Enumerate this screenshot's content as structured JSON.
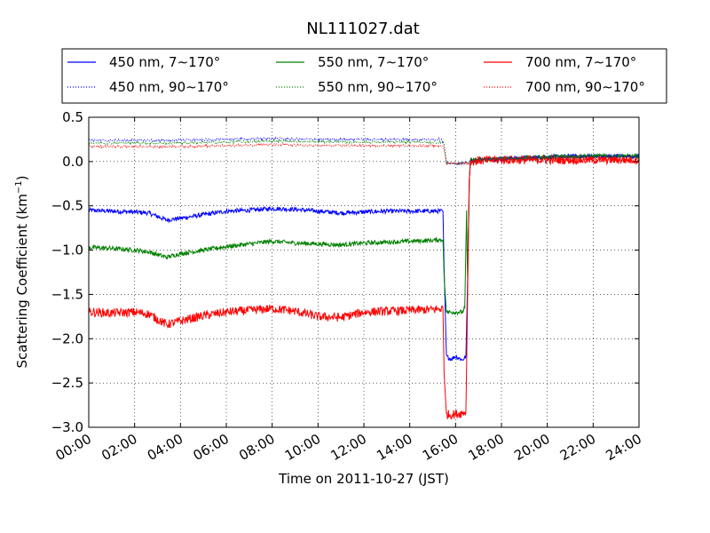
{
  "chart_data": {
    "type": "line",
    "title": "NL111027.dat",
    "xlabel": "Time on 2011-10-27 (JST)",
    "ylabel": {
      "prefix": "Scattering Coefficient (km",
      "sup": "−1",
      "suffix": ")"
    },
    "xlim": [
      0,
      24
    ],
    "ylim": [
      -3.0,
      0.5
    ],
    "x_unit": "hours",
    "x_ticks": [
      0,
      2,
      4,
      6,
      8,
      10,
      12,
      14,
      16,
      18,
      20,
      22,
      24
    ],
    "x_tick_labels": [
      "00:00",
      "02:00",
      "04:00",
      "06:00",
      "08:00",
      "10:00",
      "12:00",
      "14:00",
      "16:00",
      "18:00",
      "20:00",
      "22:00",
      "24:00"
    ],
    "y_ticks": [
      0.5,
      0.0,
      -0.5,
      -1.0,
      -1.5,
      -2.0,
      -2.5,
      -3.0
    ],
    "y_tick_labels": [
      "0.5",
      "0.0",
      "−0.5",
      "−1.0",
      "−1.5",
      "−2.0",
      "−2.5",
      "−3.0"
    ],
    "grid": true,
    "legend_placement": "top",
    "series": [
      {
        "name": "450 nm, 7∼170°",
        "color": "#0000ff",
        "style": "solid",
        "noise": 0.025,
        "points": [
          [
            0,
            -0.55
          ],
          [
            1,
            -0.56
          ],
          [
            2,
            -0.57
          ],
          [
            2.6,
            -0.58
          ],
          [
            3,
            -0.62
          ],
          [
            3.4,
            -0.66
          ],
          [
            4,
            -0.64
          ],
          [
            5,
            -0.6
          ],
          [
            6,
            -0.56
          ],
          [
            7,
            -0.55
          ],
          [
            8,
            -0.53
          ],
          [
            9,
            -0.54
          ],
          [
            10,
            -0.56
          ],
          [
            11,
            -0.58
          ],
          [
            12,
            -0.57
          ],
          [
            13,
            -0.56
          ],
          [
            14,
            -0.56
          ],
          [
            15,
            -0.56
          ],
          [
            15.45,
            -0.56
          ],
          [
            15.5,
            -1.2
          ],
          [
            15.6,
            -2.2
          ],
          [
            15.8,
            -2.23
          ],
          [
            16.0,
            -2.2
          ],
          [
            16.3,
            -2.24
          ],
          [
            16.45,
            -2.2
          ],
          [
            16.5,
            -1.65
          ],
          [
            16.55,
            -1.0
          ],
          [
            16.6,
            -0.2
          ],
          [
            16.65,
            0.01
          ],
          [
            17,
            0.02
          ],
          [
            18,
            0.03
          ],
          [
            19,
            0.04
          ],
          [
            20,
            0.05
          ],
          [
            21,
            0.06
          ],
          [
            22,
            0.06
          ],
          [
            23,
            0.06
          ],
          [
            24,
            0.06
          ]
        ]
      },
      {
        "name": "550 nm, 7∼170°",
        "color": "#008000",
        "style": "solid",
        "noise": 0.025,
        "points": [
          [
            0,
            -0.97
          ],
          [
            1,
            -0.98
          ],
          [
            2,
            -1.0
          ],
          [
            2.6,
            -1.02
          ],
          [
            3,
            -1.05
          ],
          [
            3.4,
            -1.08
          ],
          [
            4,
            -1.04
          ],
          [
            5,
            -1.0
          ],
          [
            6,
            -0.96
          ],
          [
            7,
            -0.93
          ],
          [
            8,
            -0.9
          ],
          [
            9,
            -0.92
          ],
          [
            10,
            -0.93
          ],
          [
            11,
            -0.94
          ],
          [
            12,
            -0.92
          ],
          [
            13,
            -0.91
          ],
          [
            14,
            -0.9
          ],
          [
            15,
            -0.89
          ],
          [
            15.45,
            -0.88
          ],
          [
            15.5,
            -1.3
          ],
          [
            15.6,
            -1.7
          ],
          [
            15.8,
            -1.7
          ],
          [
            16.0,
            -1.7
          ],
          [
            16.3,
            -1.7
          ],
          [
            16.4,
            -1.65
          ],
          [
            16.48,
            -0.55
          ],
          [
            16.52,
            -1.3
          ],
          [
            16.6,
            -0.2
          ],
          [
            16.65,
            0.01
          ],
          [
            17,
            0.02
          ],
          [
            18,
            0.03
          ],
          [
            19,
            0.04
          ],
          [
            20,
            0.05
          ],
          [
            21,
            0.06
          ],
          [
            22,
            0.06
          ],
          [
            23,
            0.06
          ],
          [
            24,
            0.06
          ]
        ]
      },
      {
        "name": "700 nm, 7∼170°",
        "color": "#ff0000",
        "style": "solid",
        "noise": 0.05,
        "points": [
          [
            0,
            -1.7
          ],
          [
            1,
            -1.71
          ],
          [
            2,
            -1.7
          ],
          [
            2.6,
            -1.72
          ],
          [
            3,
            -1.78
          ],
          [
            3.4,
            -1.84
          ],
          [
            4,
            -1.8
          ],
          [
            5,
            -1.74
          ],
          [
            6,
            -1.7
          ],
          [
            7,
            -1.68
          ],
          [
            8,
            -1.66
          ],
          [
            9,
            -1.69
          ],
          [
            10,
            -1.75
          ],
          [
            11,
            -1.76
          ],
          [
            12,
            -1.7
          ],
          [
            13,
            -1.69
          ],
          [
            14,
            -1.68
          ],
          [
            15,
            -1.67
          ],
          [
            15.45,
            -1.66
          ],
          [
            15.5,
            -2.4
          ],
          [
            15.6,
            -2.85
          ],
          [
            15.8,
            -2.86
          ],
          [
            16.0,
            -2.85
          ],
          [
            16.3,
            -2.84
          ],
          [
            16.45,
            -2.82
          ],
          [
            16.5,
            -2.0
          ],
          [
            16.55,
            -1.0
          ],
          [
            16.6,
            -0.2
          ],
          [
            16.65,
            0.0
          ],
          [
            17,
            0.01
          ],
          [
            18,
            0.02
          ],
          [
            19,
            0.02
          ],
          [
            20,
            0.02
          ],
          [
            21,
            0.02
          ],
          [
            22,
            0.02
          ],
          [
            23,
            0.02
          ],
          [
            24,
            0.02
          ]
        ]
      },
      {
        "name": "450 nm, 90∼170°",
        "color": "#0000ff",
        "style": "dotted",
        "noise": 0.012,
        "points": [
          [
            0,
            0.24
          ],
          [
            2,
            0.24
          ],
          [
            4,
            0.24
          ],
          [
            6,
            0.25
          ],
          [
            8,
            0.26
          ],
          [
            10,
            0.25
          ],
          [
            12,
            0.25
          ],
          [
            14,
            0.25
          ],
          [
            15.4,
            0.25
          ],
          [
            15.5,
            0.2
          ],
          [
            15.6,
            -0.02
          ],
          [
            16.6,
            -0.02
          ],
          [
            16.65,
            0.01
          ],
          [
            17,
            0.02
          ],
          [
            18,
            0.03
          ],
          [
            20,
            0.05
          ],
          [
            22,
            0.06
          ],
          [
            24,
            0.06
          ]
        ]
      },
      {
        "name": "550 nm, 90∼170°",
        "color": "#008000",
        "style": "dotted",
        "noise": 0.012,
        "points": [
          [
            0,
            0.21
          ],
          [
            2,
            0.21
          ],
          [
            4,
            0.21
          ],
          [
            6,
            0.22
          ],
          [
            8,
            0.23
          ],
          [
            10,
            0.22
          ],
          [
            12,
            0.22
          ],
          [
            14,
            0.22
          ],
          [
            15.4,
            0.22
          ],
          [
            15.5,
            0.18
          ],
          [
            15.6,
            -0.02
          ],
          [
            16.6,
            -0.02
          ],
          [
            16.65,
            0.01
          ],
          [
            17,
            0.02
          ],
          [
            18,
            0.03
          ],
          [
            20,
            0.05
          ],
          [
            22,
            0.06
          ],
          [
            24,
            0.06
          ]
        ]
      },
      {
        "name": "700 nm, 90∼170°",
        "color": "#ff0000",
        "style": "dotted",
        "noise": 0.012,
        "points": [
          [
            0,
            0.17
          ],
          [
            2,
            0.17
          ],
          [
            4,
            0.17
          ],
          [
            6,
            0.18
          ],
          [
            8,
            0.19
          ],
          [
            10,
            0.18
          ],
          [
            12,
            0.18
          ],
          [
            14,
            0.18
          ],
          [
            15.4,
            0.18
          ],
          [
            15.5,
            0.14
          ],
          [
            15.6,
            -0.02
          ],
          [
            16.6,
            -0.02
          ],
          [
            16.65,
            0.0
          ],
          [
            17,
            0.01
          ],
          [
            18,
            0.02
          ],
          [
            20,
            0.02
          ],
          [
            22,
            0.02
          ],
          [
            24,
            0.02
          ]
        ]
      }
    ]
  }
}
